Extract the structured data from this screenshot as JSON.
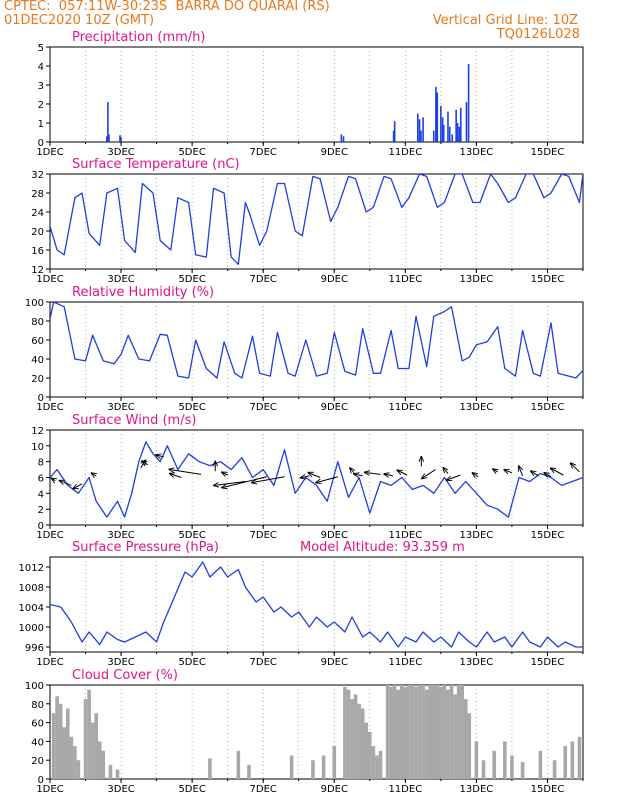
{
  "header": {
    "line1_left": "CPTEC:  057:11W-30:23S  BARRA DO QUARAI (RS)",
    "line2_left": "01DEC2020 10Z (GMT)",
    "line2_right": "Vertical Grid Line: 10Z",
    "line3_right": "TQ0126L028"
  },
  "colors": {
    "header": "#e8781c",
    "title": "#e0158a",
    "series": "#1f3fe0",
    "cloud": "#a8a8a8",
    "wind_arrow": "#000000"
  },
  "x_axis": {
    "tick_labels": [
      "1DEC",
      "3DEC",
      "5DEC",
      "7DEC",
      "9DEC",
      "11DEC",
      "13DEC",
      "15DEC"
    ],
    "tick_days": [
      1,
      3,
      5,
      7,
      9,
      11,
      13,
      15
    ],
    "range_days": [
      1,
      16
    ]
  },
  "chart_data": [
    {
      "id": "precip",
      "type": "bar",
      "title": "Precipitation (mm/h)",
      "ylim": [
        0,
        5
      ],
      "yticks": [
        0,
        1,
        2,
        3,
        4,
        5
      ],
      "bars": [
        [
          2.6,
          0.3
        ],
        [
          2.63,
          2.1
        ],
        [
          2.66,
          0.4
        ],
        [
          2.97,
          0.35
        ],
        [
          3.0,
          0.25
        ],
        [
          9.2,
          0.4
        ],
        [
          9.26,
          0.3
        ],
        [
          10.67,
          0.6
        ],
        [
          10.7,
          1.1
        ],
        [
          11.35,
          1.5
        ],
        [
          11.4,
          1.2
        ],
        [
          11.44,
          0.6
        ],
        [
          11.5,
          1.3
        ],
        [
          11.8,
          0.6
        ],
        [
          11.86,
          2.9
        ],
        [
          11.9,
          2.6
        ],
        [
          12.0,
          1.9
        ],
        [
          12.05,
          1.3
        ],
        [
          12.08,
          0.9
        ],
        [
          12.2,
          1.6
        ],
        [
          12.25,
          0.8
        ],
        [
          12.32,
          0.4
        ],
        [
          12.43,
          1.7
        ],
        [
          12.47,
          1.0
        ],
        [
          12.52,
          0.8
        ],
        [
          12.56,
          1.8
        ],
        [
          12.72,
          2.1
        ],
        [
          12.78,
          4.1
        ]
      ]
    },
    {
      "id": "temp",
      "type": "line",
      "title": "Surface Temperature (nC)",
      "ylim": [
        12,
        32
      ],
      "yticks": [
        12,
        16,
        20,
        24,
        28,
        32
      ],
      "x": [
        1.0,
        1.2,
        1.4,
        1.7,
        1.9,
        2.1,
        2.4,
        2.6,
        2.9,
        3.1,
        3.4,
        3.6,
        3.9,
        4.1,
        4.4,
        4.6,
        4.9,
        5.1,
        5.4,
        5.6,
        5.9,
        6.1,
        6.3,
        6.5,
        6.6,
        6.9,
        7.1,
        7.4,
        7.6,
        7.9,
        8.1,
        8.4,
        8.6,
        8.9,
        9.1,
        9.4,
        9.6,
        9.9,
        10.1,
        10.4,
        10.6,
        10.9,
        11.1,
        11.4,
        11.6,
        11.9,
        12.1,
        12.4,
        12.6,
        12.9,
        13.1,
        13.4,
        13.6,
        13.9,
        14.1,
        14.4,
        14.6,
        14.9,
        15.1,
        15.4,
        15.6,
        15.9,
        16.0
      ],
      "y": [
        21.0,
        16.0,
        15.0,
        27.0,
        28.0,
        19.5,
        17.0,
        28.0,
        29.0,
        18.0,
        15.5,
        30.0,
        28.0,
        18.0,
        16.0,
        27.0,
        26.0,
        15.0,
        14.5,
        29.0,
        28.0,
        14.5,
        13.0,
        26.0,
        24.0,
        17.0,
        20.0,
        30.0,
        30.0,
        20.0,
        19.0,
        31.5,
        31.0,
        22.0,
        25.0,
        31.5,
        31.0,
        24.0,
        25.0,
        31.5,
        31.0,
        25.0,
        27.0,
        32.0,
        31.5,
        25.0,
        26.0,
        32.0,
        32.0,
        26.0,
        26.0,
        32.0,
        30.0,
        26.0,
        27.0,
        32.0,
        32.0,
        27.0,
        28.0,
        32.0,
        31.5,
        26.0,
        32.0
      ]
    },
    {
      "id": "rh",
      "type": "line",
      "title": "Relative Humidity (%)",
      "ylim": [
        0,
        100
      ],
      "yticks": [
        0,
        20,
        40,
        60,
        80,
        100
      ],
      "x": [
        1.0,
        1.1,
        1.4,
        1.7,
        2.0,
        2.2,
        2.5,
        2.8,
        3.0,
        3.2,
        3.5,
        3.8,
        4.1,
        4.3,
        4.6,
        4.9,
        5.1,
        5.4,
        5.7,
        5.9,
        6.2,
        6.4,
        6.7,
        6.9,
        7.2,
        7.4,
        7.7,
        7.9,
        8.2,
        8.5,
        8.8,
        9.0,
        9.3,
        9.6,
        9.8,
        10.1,
        10.3,
        10.6,
        10.8,
        11.1,
        11.3,
        11.6,
        11.8,
        12.1,
        12.3,
        12.6,
        12.8,
        13.0,
        13.3,
        13.6,
        13.8,
        14.1,
        14.3,
        14.6,
        14.8,
        15.1,
        15.3,
        15.6,
        15.8,
        16.0
      ],
      "y": [
        82.0,
        100.0,
        95.0,
        40.0,
        38.0,
        65.0,
        38.0,
        35.0,
        45.0,
        65.0,
        40.0,
        38.0,
        66.0,
        65.0,
        22.0,
        20.0,
        60.0,
        30.0,
        20.0,
        58.0,
        25.0,
        20.0,
        64.0,
        25.0,
        22.0,
        68.0,
        25.0,
        22.0,
        60.0,
        22.0,
        25.0,
        68.0,
        27.0,
        23.0,
        72.0,
        25.0,
        25.0,
        70.0,
        30.0,
        30.0,
        85.0,
        32.0,
        85.0,
        90.0,
        95.0,
        38.0,
        42.0,
        55.0,
        58.0,
        74.0,
        30.0,
        22.0,
        70.0,
        25.0,
        22.0,
        78.0,
        25.0,
        22.0,
        20.0,
        28.0
      ]
    },
    {
      "id": "wind",
      "type": "line",
      "title": "Surface Wind (m/s)",
      "ylim": [
        0,
        12
      ],
      "yticks": [
        0,
        2,
        4,
        6,
        8,
        10,
        12
      ],
      "x": [
        1.0,
        1.2,
        1.5,
        1.8,
        2.1,
        2.3,
        2.6,
        2.9,
        3.1,
        3.3,
        3.5,
        3.7,
        3.9,
        4.1,
        4.3,
        4.6,
        4.9,
        5.2,
        5.5,
        5.8,
        6.1,
        6.4,
        6.7,
        7.0,
        7.3,
        7.6,
        7.9,
        8.2,
        8.5,
        8.8,
        9.1,
        9.4,
        9.7,
        10.0,
        10.3,
        10.6,
        10.9,
        11.2,
        11.5,
        11.8,
        12.1,
        12.4,
        12.7,
        13.0,
        13.3,
        13.6,
        13.9,
        14.2,
        14.5,
        14.8,
        15.1,
        15.4,
        15.7,
        16.0
      ],
      "y": [
        6.0,
        7.0,
        5.0,
        4.0,
        6.0,
        3.0,
        1.0,
        3.0,
        1.0,
        4.0,
        8.0,
        10.5,
        9.0,
        8.0,
        10.0,
        7.0,
        9.0,
        8.0,
        7.5,
        8.0,
        7.0,
        8.5,
        6.0,
        7.0,
        5.0,
        9.5,
        4.0,
        6.0,
        5.0,
        3.0,
        8.0,
        3.5,
        6.0,
        1.5,
        5.5,
        5.0,
        6.0,
        4.5,
        5.0,
        4.0,
        6.0,
        4.0,
        5.5,
        4.0,
        2.5,
        2.0,
        1.0,
        6.0,
        5.5,
        6.5,
        6.0,
        5.0,
        5.5,
        6.0
      ],
      "arrows": [
        [
          1.15,
          5.6,
          -4,
          -2.5
        ],
        [
          1.6,
          5.0,
          -12,
          -5
        ],
        [
          1.9,
          5.2,
          -9,
          5
        ],
        [
          2.3,
          6.2,
          -5,
          -3
        ],
        [
          3.55,
          7.2,
          5,
          -8
        ],
        [
          3.75,
          7.6,
          -6,
          -4
        ],
        [
          4.2,
          8.6,
          -8,
          -2
        ],
        [
          4.7,
          6.0,
          -12,
          -4
        ],
        [
          5.25,
          6.4,
          -32,
          -5
        ],
        [
          5.65,
          6.8,
          0,
          -10
        ],
        [
          6.0,
          6.3,
          -6,
          -3
        ],
        [
          6.5,
          5.5,
          -32,
          4
        ],
        [
          7.1,
          6.1,
          -45,
          11
        ],
        [
          7.6,
          6.1,
          -33,
          6
        ],
        [
          8.3,
          6.2,
          -9,
          2
        ],
        [
          8.6,
          6.0,
          -12,
          -5
        ],
        [
          9.1,
          6.1,
          -22,
          6
        ],
        [
          9.55,
          6.6,
          -4,
          -5
        ],
        [
          9.8,
          6.2,
          -9,
          -2
        ],
        [
          10.3,
          6.4,
          -16,
          -2
        ],
        [
          10.65,
          6.2,
          -9,
          -2
        ],
        [
          11.05,
          6.3,
          -10,
          -5
        ],
        [
          11.45,
          7.4,
          0,
          -10
        ],
        [
          11.85,
          7.0,
          -14,
          9
        ],
        [
          12.2,
          6.5,
          -5,
          -6
        ],
        [
          12.55,
          6.3,
          -14,
          5
        ],
        [
          13.05,
          6.1,
          -6,
          -4
        ],
        [
          13.6,
          6.7,
          -5,
          -3
        ],
        [
          14.0,
          6.6,
          -8,
          -3
        ],
        [
          14.3,
          6.2,
          -4,
          -10
        ],
        [
          14.75,
          6.2,
          -8,
          -5
        ],
        [
          15.1,
          6.1,
          -7,
          -4
        ],
        [
          15.45,
          6.3,
          -13,
          -7
        ],
        [
          15.9,
          6.7,
          -9,
          -9
        ]
      ]
    },
    {
      "id": "pressure",
      "type": "line",
      "title": "Surface Pressure (hPa)",
      "annotation": "Model Altitude: 93.359 m",
      "ylim": [
        995,
        1014
      ],
      "yticks": [
        996,
        1000,
        1004,
        1008,
        1012
      ],
      "x": [
        1.0,
        1.3,
        1.6,
        1.9,
        2.1,
        2.4,
        2.6,
        2.9,
        3.1,
        3.4,
        3.7,
        4.0,
        4.2,
        4.5,
        4.8,
        5.0,
        5.3,
        5.5,
        5.8,
        6.0,
        6.3,
        6.5,
        6.8,
        7.0,
        7.3,
        7.5,
        7.8,
        8.0,
        8.3,
        8.5,
        8.8,
        9.0,
        9.3,
        9.5,
        9.8,
        10.0,
        10.3,
        10.5,
        10.8,
        11.0,
        11.3,
        11.5,
        11.8,
        12.0,
        12.3,
        12.5,
        12.8,
        13.0,
        13.3,
        13.5,
        13.8,
        14.0,
        14.3,
        14.5,
        14.8,
        15.0,
        15.3,
        15.5,
        15.8,
        16.0
      ],
      "y": [
        1004.5,
        1004.0,
        1001.0,
        997.0,
        999.0,
        996.5,
        999.0,
        997.5,
        997.0,
        998.0,
        999.0,
        997.0,
        1001.0,
        1006.0,
        1011.0,
        1010.0,
        1013.0,
        1010.0,
        1012.0,
        1010.0,
        1011.5,
        1008.0,
        1005.0,
        1006.0,
        1003.0,
        1004.0,
        1002.0,
        1003.0,
        1000.0,
        1002.0,
        1000.0,
        1001.0,
        999.0,
        1002.0,
        998.0,
        999.0,
        997.0,
        999.0,
        996.0,
        998.0,
        997.0,
        999.0,
        997.0,
        998.0,
        996.0,
        999.0,
        997.0,
        996.0,
        999.0,
        997.0,
        998.0,
        996.0,
        999.0,
        997.0,
        996.0,
        998.0,
        996.0,
        997.0,
        996.0,
        996.0
      ]
    },
    {
      "id": "cloud",
      "type": "bar",
      "title": "Cloud Cover (%)",
      "ylim": [
        0,
        100
      ],
      "yticks": [
        0,
        20,
        40,
        60,
        80,
        100
      ],
      "bars": [
        [
          1.1,
          70
        ],
        [
          1.2,
          88
        ],
        [
          1.3,
          80
        ],
        [
          1.4,
          55
        ],
        [
          1.5,
          75
        ],
        [
          1.6,
          45
        ],
        [
          1.7,
          35
        ],
        [
          1.8,
          20
        ],
        [
          2.0,
          85
        ],
        [
          2.1,
          95
        ],
        [
          2.2,
          60
        ],
        [
          2.3,
          70
        ],
        [
          2.4,
          40
        ],
        [
          2.5,
          30
        ],
        [
          2.7,
          15
        ],
        [
          2.9,
          10
        ],
        [
          5.5,
          22
        ],
        [
          6.3,
          30
        ],
        [
          6.6,
          15
        ],
        [
          7.8,
          25
        ],
        [
          8.4,
          20
        ],
        [
          8.7,
          25
        ],
        [
          9.0,
          35
        ],
        [
          9.3,
          98
        ],
        [
          9.4,
          95
        ],
        [
          9.5,
          85
        ],
        [
          9.6,
          90
        ],
        [
          9.7,
          80
        ],
        [
          9.8,
          75
        ],
        [
          9.9,
          60
        ],
        [
          10.0,
          50
        ],
        [
          10.1,
          35
        ],
        [
          10.2,
          25
        ],
        [
          10.3,
          30
        ],
        [
          10.5,
          100
        ],
        [
          10.6,
          98
        ],
        [
          10.7,
          100
        ],
        [
          10.8,
          95
        ],
        [
          10.9,
          100
        ],
        [
          11.0,
          98
        ],
        [
          11.1,
          100
        ],
        [
          11.2,
          100
        ],
        [
          11.3,
          98
        ],
        [
          11.4,
          100
        ],
        [
          11.5,
          100
        ],
        [
          11.6,
          95
        ],
        [
          11.7,
          100
        ],
        [
          11.8,
          100
        ],
        [
          11.9,
          100
        ],
        [
          12.0,
          98
        ],
        [
          12.1,
          100
        ],
        [
          12.2,
          95
        ],
        [
          12.3,
          100
        ],
        [
          12.4,
          90
        ],
        [
          12.5,
          100
        ],
        [
          12.6,
          100
        ],
        [
          12.7,
          85
        ],
        [
          12.8,
          70
        ],
        [
          13.0,
          40
        ],
        [
          13.2,
          20
        ],
        [
          13.5,
          30
        ],
        [
          13.8,
          40
        ],
        [
          14.0,
          25
        ],
        [
          14.3,
          18
        ],
        [
          14.8,
          30
        ],
        [
          15.2,
          20
        ],
        [
          15.5,
          35
        ],
        [
          15.7,
          40
        ],
        [
          15.9,
          45
        ]
      ]
    }
  ]
}
